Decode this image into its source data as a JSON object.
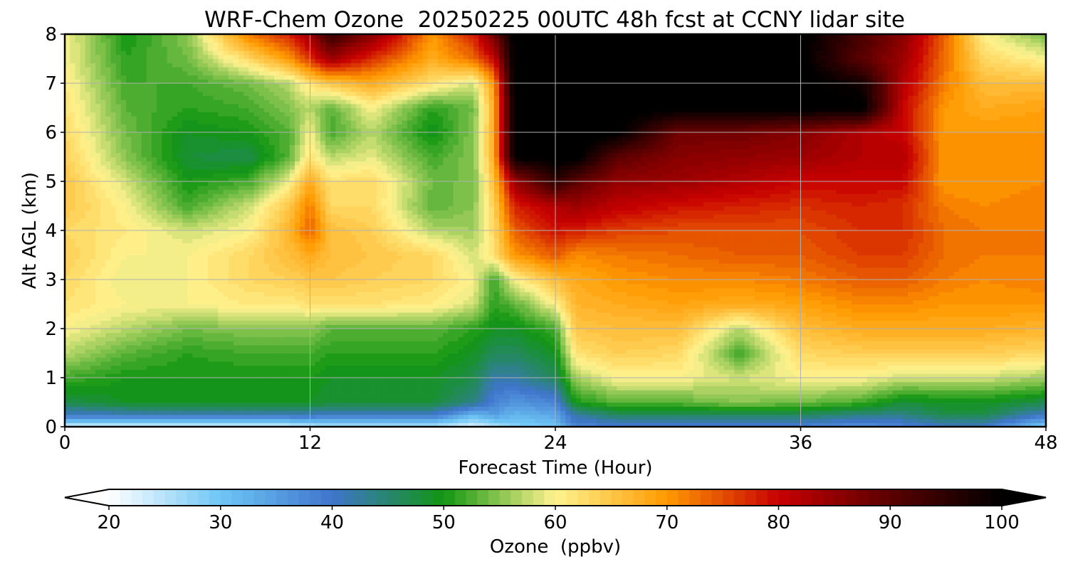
{
  "chart_data": {
    "type": "heatmap",
    "title": "WRF-Chem Ozone  20250225 00UTC 48h fcst at CCNY lidar site",
    "xlabel": "Forecast Time (Hour)",
    "ylabel": "Alt AGL (km)",
    "xlim": [
      0,
      48
    ],
    "ylim": [
      0,
      8
    ],
    "xticks": [
      0,
      12,
      24,
      36,
      48
    ],
    "yticks": [
      0,
      1,
      2,
      3,
      4,
      5,
      6,
      7,
      8
    ],
    "grid": true,
    "x": [
      0,
      3,
      6,
      9,
      11,
      12,
      13,
      15,
      18,
      20,
      21,
      22,
      24,
      25,
      27,
      30,
      33,
      36,
      39,
      41,
      43,
      45,
      48
    ],
    "y": [
      0,
      0.25,
      0.5,
      1,
      1.5,
      2,
      2.5,
      3,
      3.5,
      4,
      4.5,
      5,
      5.5,
      6,
      6.5,
      7,
      7.5,
      8
    ],
    "z": [
      [
        22,
        22,
        22,
        22,
        23,
        24,
        25,
        25,
        25,
        22,
        25,
        28,
        30,
        38,
        38,
        38,
        38,
        38,
        36,
        38,
        40,
        40,
        28
      ],
      [
        40,
        41,
        41,
        41,
        41,
        41,
        40,
        40,
        40,
        32,
        35,
        32,
        34,
        42,
        46,
        46,
        46,
        46,
        44,
        44,
        47,
        47,
        40
      ],
      [
        47,
        49,
        49,
        49,
        49,
        49,
        48,
        48,
        48,
        44,
        38,
        36,
        38,
        50,
        53,
        53,
        55,
        54,
        52,
        48,
        49,
        49,
        47
      ],
      [
        52,
        50,
        50,
        50,
        50,
        50,
        49,
        49,
        49,
        47,
        42,
        42,
        46,
        56,
        60,
        60,
        58,
        60,
        60,
        58,
        58,
        58,
        56
      ],
      [
        57,
        53,
        51,
        52,
        52,
        52,
        51,
        51,
        51,
        49,
        46,
        46,
        49,
        62,
        64,
        63,
        52,
        63,
        64,
        64,
        64,
        64,
        63
      ],
      [
        60,
        57,
        54,
        55,
        55,
        55,
        53,
        53,
        53,
        51,
        49,
        49,
        52,
        65,
        66,
        66,
        57,
        66,
        68,
        68,
        68,
        68,
        67
      ],
      [
        62,
        60,
        60,
        61,
        61,
        62,
        62,
        62,
        61,
        58,
        51,
        53,
        60,
        67,
        68,
        69,
        68,
        69,
        71,
        71,
        70,
        70,
        70
      ],
      [
        63,
        59,
        60,
        63,
        64,
        65,
        65,
        64,
        63,
        60,
        52,
        60,
        66,
        68,
        70,
        71,
        71,
        72,
        74,
        74,
        72,
        71,
        72
      ],
      [
        64,
        60,
        60,
        63,
        66,
        68,
        66,
        65,
        63,
        58,
        62,
        70,
        74,
        71,
        72,
        73,
        74,
        74,
        76,
        76,
        73,
        72,
        72
      ],
      [
        63,
        61,
        58,
        60,
        67,
        74,
        66,
        64,
        57,
        56,
        63,
        74,
        79,
        78,
        76,
        75,
        75,
        75,
        77,
        77,
        73,
        72,
        72
      ],
      [
        65,
        60,
        52,
        58,
        65,
        72,
        63,
        63,
        53,
        55,
        64,
        78,
        82,
        84,
        81,
        79,
        78,
        77,
        78,
        77,
        72,
        71,
        72
      ],
      [
        65,
        58,
        50,
        52,
        60,
        68,
        62,
        63,
        54,
        54,
        66,
        84,
        95,
        90,
        85,
        84,
        82,
        80,
        80,
        80,
        70,
        70,
        71
      ],
      [
        64,
        55,
        48,
        47,
        53,
        62,
        57,
        59,
        52,
        55,
        68,
        100,
        101,
        101,
        90,
        86,
        85,
        84,
        82,
        82,
        70,
        70,
        71
      ],
      [
        63,
        54,
        49,
        50,
        53,
        60,
        52,
        57,
        49,
        55,
        68,
        101,
        102,
        102,
        101,
        88,
        88,
        86,
        82,
        80,
        70,
        70,
        70
      ],
      [
        62,
        53,
        51,
        52,
        55,
        57,
        53,
        60,
        51,
        54,
        68,
        101,
        102,
        102,
        101,
        101,
        101,
        101,
        101,
        80,
        70,
        68,
        69
      ],
      [
        61,
        52,
        52,
        54,
        57,
        62,
        65,
        68,
        62,
        58,
        70,
        101,
        102,
        102,
        101,
        101,
        101,
        101,
        98,
        82,
        72,
        66,
        66
      ],
      [
        60,
        51,
        54,
        63,
        70,
        77,
        84,
        77,
        68,
        73,
        80,
        101,
        102,
        102,
        101,
        101,
        101,
        101,
        90,
        84,
        73,
        63,
        60
      ],
      [
        60,
        50,
        55,
        72,
        78,
        84,
        94,
        86,
        70,
        78,
        88,
        101,
        102,
        102,
        101,
        101,
        101,
        101,
        92,
        86,
        74,
        60,
        54
      ]
    ],
    "colorbar": {
      "label": "Ozone  (ppbv)",
      "min": 20,
      "max": 100,
      "step": 1,
      "extend": "both",
      "ticks": [
        20,
        30,
        40,
        50,
        60,
        70,
        80,
        90,
        100
      ],
      "colors": [
        {
          "v": 20,
          "c": "#ffffff"
        },
        {
          "v": 30,
          "c": "#6ec6f5"
        },
        {
          "v": 40,
          "c": "#3f75cc"
        },
        {
          "v": 50,
          "c": "#129612"
        },
        {
          "v": 60,
          "c": "#fff38f"
        },
        {
          "v": 70,
          "c": "#ff9a00"
        },
        {
          "v": 80,
          "c": "#c80000"
        },
        {
          "v": 90,
          "c": "#5a0000"
        },
        {
          "v": 100,
          "c": "#000000"
        }
      ]
    }
  }
}
